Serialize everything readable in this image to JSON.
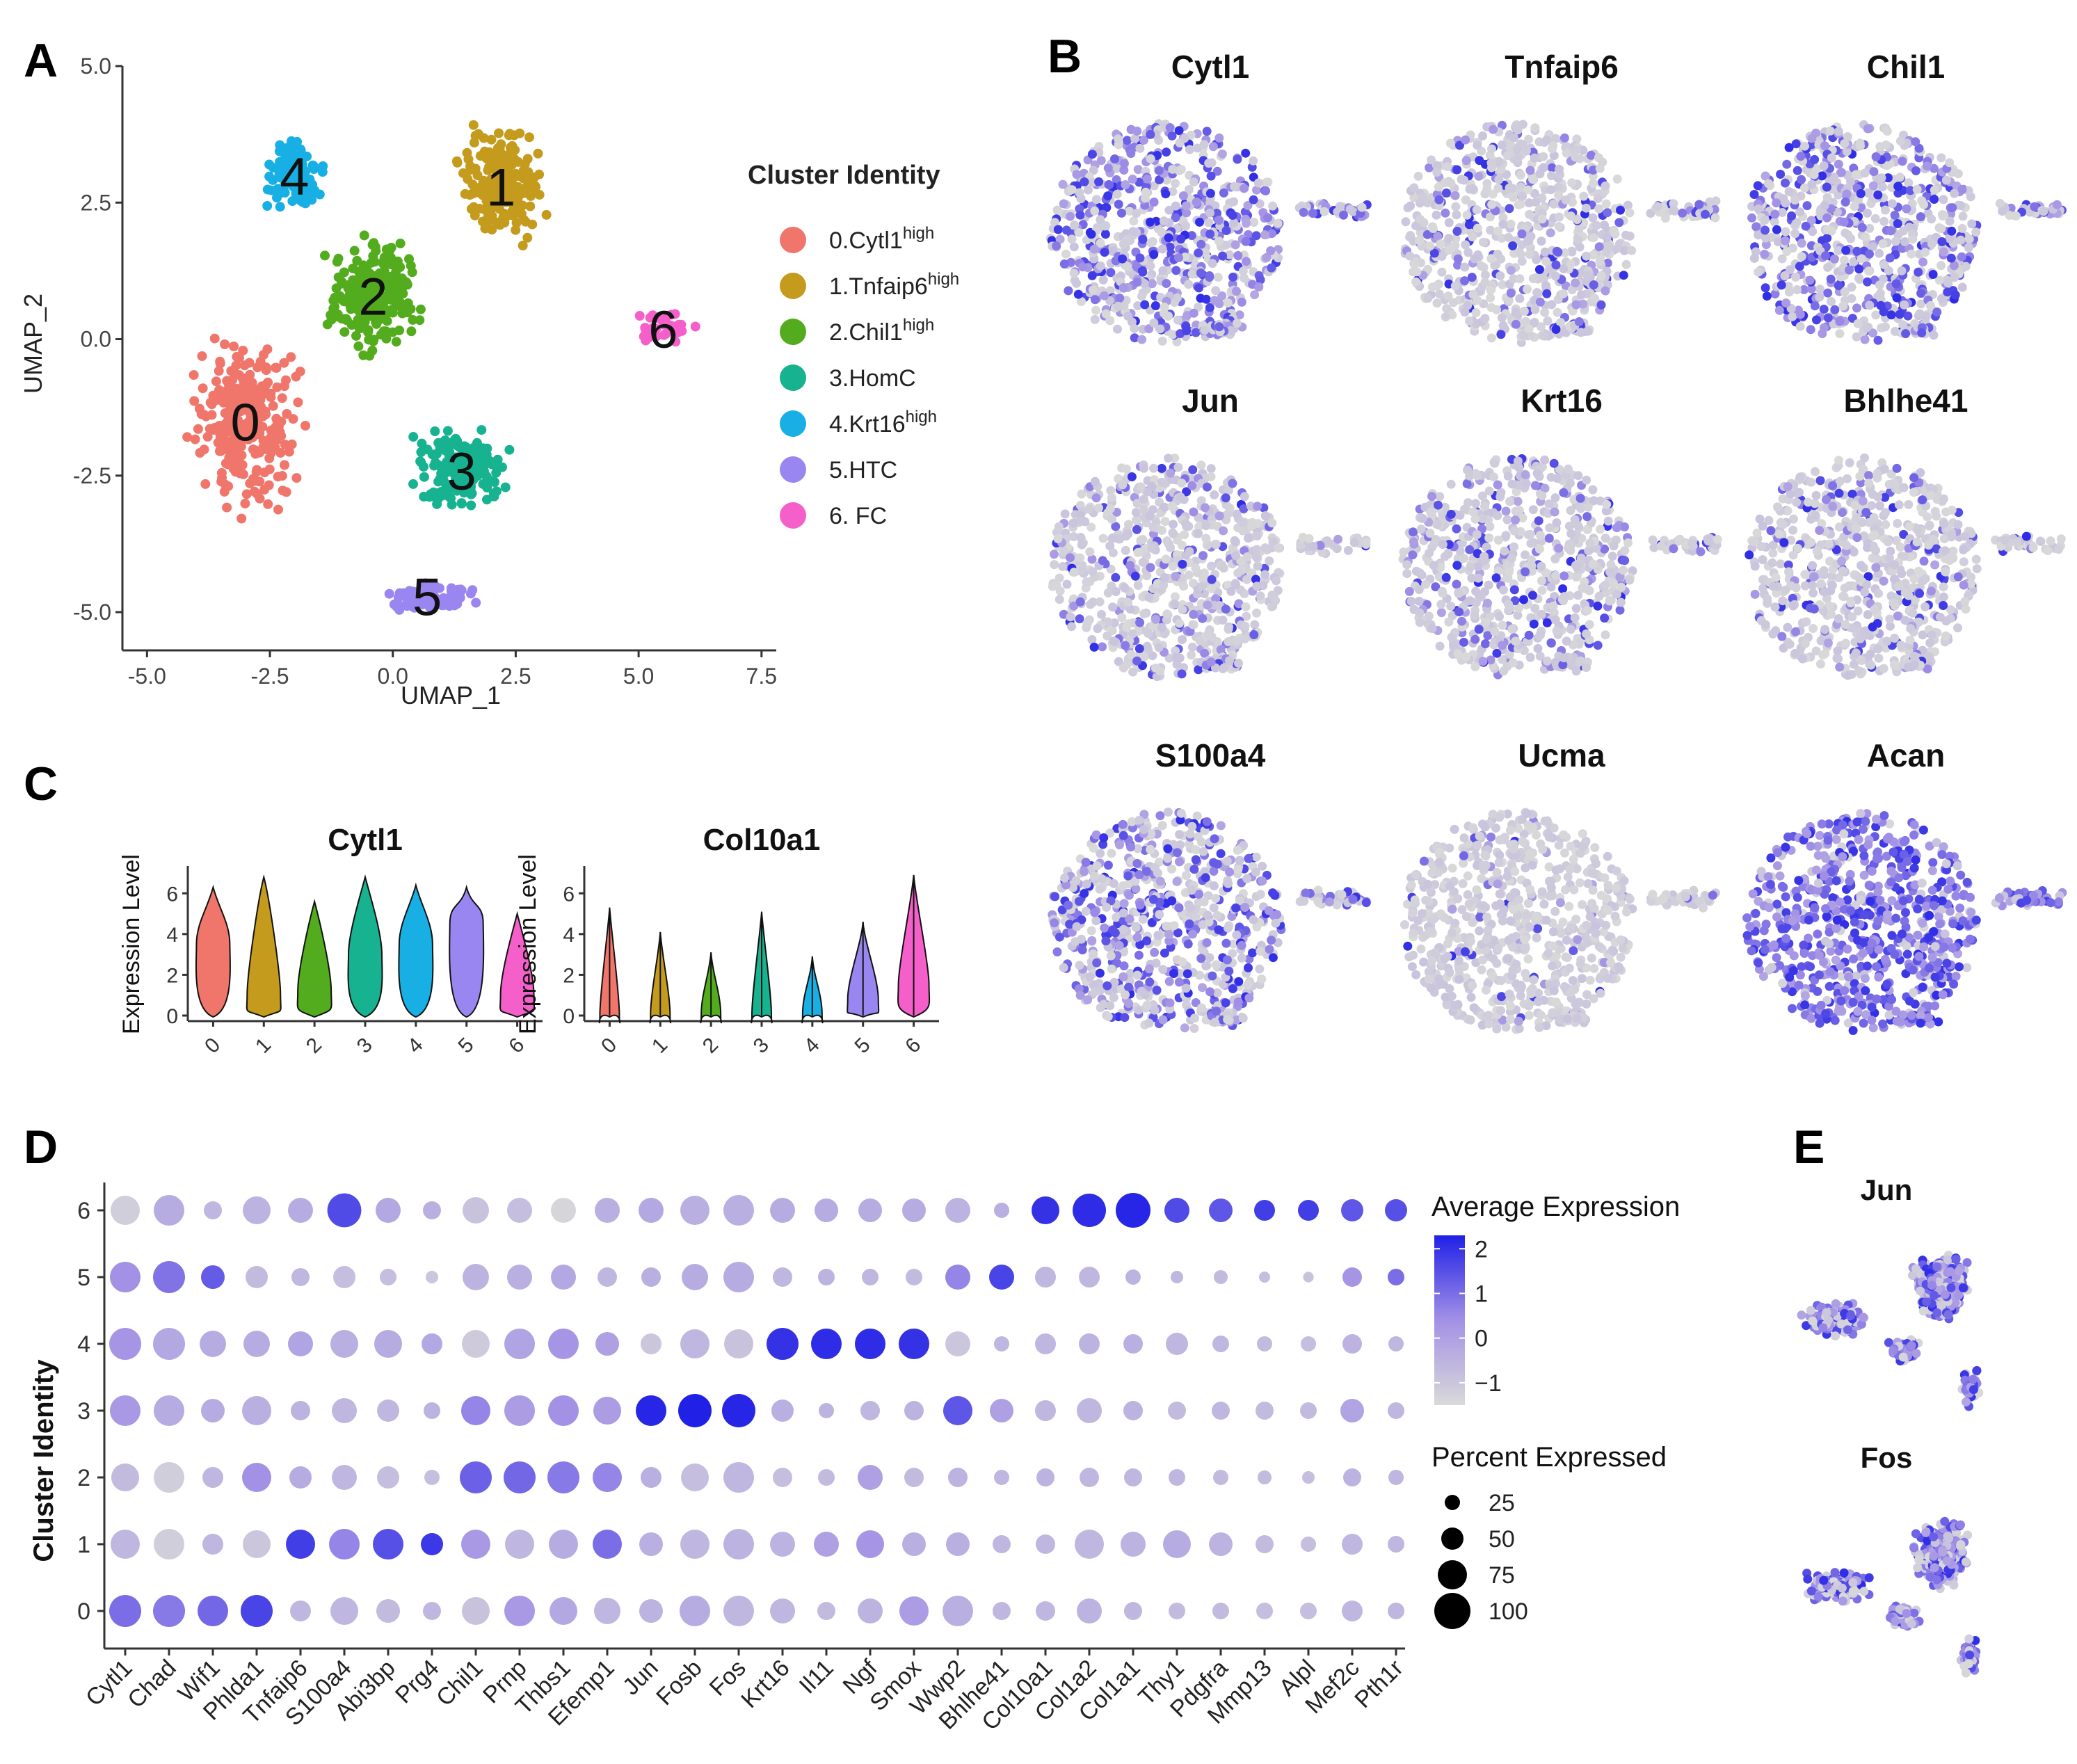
{
  "panel_labels": {
    "A": "A",
    "B": "B",
    "C": "C",
    "D": "D",
    "E": "E"
  },
  "colors": {
    "c0": "#f0756b",
    "c1": "#c49b1c",
    "c2": "#52ac1d",
    "c3": "#17b290",
    "c4": "#18b0e4",
    "c5": "#9a86f0",
    "c6": "#f55fc9",
    "low": "#d9d9d9",
    "high": "#2020e6",
    "axis": "#333333"
  },
  "icons": [
    "legend-dot-icon",
    "color-bar-icon",
    "size-dot-icon"
  ],
  "panelA": {
    "chart_data": {
      "type": "scatter",
      "xlabel": "UMAP_1",
      "ylabel": "UMAP_2",
      "xlim": [
        -5.5,
        7.8
      ],
      "ylim": [
        -5.7,
        5.0
      ],
      "x_ticks": [
        "-5.0",
        "-2.5",
        "0.0",
        "2.5",
        "5.0",
        "7.5"
      ],
      "y_ticks": [
        "5.0",
        "2.5",
        "0.0",
        "-2.5",
        "-5.0"
      ],
      "legend_title": "Cluster Identity",
      "legend_position": "right",
      "clusters": [
        {
          "id": "0",
          "label": "0.Cytl1",
          "sup": "high"
        },
        {
          "id": "1",
          "label": "1.Tnfaip6",
          "sup": "high"
        },
        {
          "id": "2",
          "label": "2.Chil1",
          "sup": "high"
        },
        {
          "id": "3",
          "label": "3.HomC",
          "sup": ""
        },
        {
          "id": "4",
          "label": "4.Krt16",
          "sup": "high"
        },
        {
          "id": "5",
          "label": "5.HTC",
          "sup": ""
        },
        {
          "id": "6",
          "label": "6. FC",
          "sup": ""
        }
      ],
      "cluster_centers": [
        [
          -3.0,
          -1.5
        ],
        [
          2.2,
          2.8
        ],
        [
          -0.4,
          0.8
        ],
        [
          1.4,
          -2.4
        ],
        [
          -2.0,
          3.0
        ],
        [
          0.7,
          -4.7
        ],
        [
          5.5,
          0.2
        ]
      ]
    }
  },
  "panelB": {
    "genes": [
      "Cytl1",
      "Tnfaip6",
      "Chil1",
      "Jun",
      "Krt16",
      "Bhlhe41",
      "S100a4",
      "Ucma",
      "Acan"
    ],
    "expression_level": [
      0.55,
      0.2,
      0.45,
      0.2,
      0.25,
      0.2,
      0.45,
      0.05,
      0.85
    ]
  },
  "panelC": {
    "chart_data": [
      {
        "type": "violin",
        "title": "Cytl1",
        "ylabel": "Expression Level",
        "categories": [
          "0",
          "1",
          "2",
          "3",
          "4",
          "5",
          "6"
        ],
        "y_ticks": [
          "0",
          "2",
          "4",
          "6"
        ],
        "ylim": [
          0,
          7
        ],
        "max": [
          6.3,
          6.8,
          5.6,
          6.8,
          6.4,
          6.3,
          5.0
        ],
        "median": [
          3.5,
          1.0,
          1.2,
          3.0,
          3.5,
          4.5,
          1.0
        ]
      },
      {
        "type": "violin",
        "title": "Col10a1",
        "ylabel": "Expression Level",
        "categories": [
          "0",
          "1",
          "2",
          "3",
          "4",
          "5",
          "6"
        ],
        "y_ticks": [
          "0",
          "2",
          "4",
          "6"
        ],
        "ylim": [
          0,
          7
        ],
        "max": [
          5.3,
          4.1,
          3.1,
          5.1,
          2.9,
          4.6,
          6.9
        ],
        "median": [
          0.05,
          0.05,
          0.05,
          0.05,
          0.05,
          0.8,
          1.5
        ]
      }
    ]
  },
  "panelD": {
    "chart_data": {
      "type": "dotplot",
      "ylabel": "Cluster Identity",
      "genes": [
        "Cytl1",
        "Chad",
        "Wif1",
        "Phlda1",
        "Tnfaip6",
        "S100a4",
        "Abi3bp",
        "Prg4",
        "Chil1",
        "Prnp",
        "Thbs1",
        "Efemp1",
        "Jun",
        "Fosb",
        "Fos",
        "Krt16",
        "Il11",
        "Ngf",
        "Smox",
        "Wwp2",
        "Bhlhe41",
        "Col10a1",
        "Col1a2",
        "Col1a1",
        "Thy1",
        "Pdgfra",
        "Mmp13",
        "Alpl",
        "Mef2c",
        "Pth1r"
      ],
      "clusters": [
        "6",
        "5",
        "4",
        "3",
        "2",
        "1",
        "0"
      ],
      "avg_expression": [
        [
          -1.2,
          -0.3,
          -0.6,
          -0.5,
          -0.3,
          1.6,
          -0.2,
          -0.4,
          -0.9,
          -0.8,
          -1.4,
          -0.4,
          -0.2,
          -0.4,
          -0.4,
          -0.3,
          -0.3,
          -0.3,
          -0.3,
          -0.5,
          -0.4,
          2.0,
          2.1,
          2.2,
          1.6,
          1.4,
          1.8,
          1.8,
          1.4,
          1.5
        ],
        [
          0.4,
          0.9,
          1.3,
          -0.7,
          -0.6,
          -0.8,
          -0.8,
          -1.0,
          -0.5,
          -0.4,
          -0.2,
          -0.6,
          -0.4,
          -0.3,
          -0.3,
          -0.6,
          -0.5,
          -0.6,
          -0.7,
          0.6,
          1.7,
          -0.6,
          -0.6,
          -0.5,
          -0.6,
          -0.7,
          -0.8,
          -0.9,
          0.3,
          1.0
        ],
        [
          0.3,
          -0.2,
          -0.3,
          -0.3,
          -0.1,
          -0.4,
          -0.3,
          -0.2,
          -1.1,
          -0.1,
          0.3,
          0.0,
          -1.0,
          -0.6,
          -0.9,
          2.0,
          2.1,
          2.1,
          2.0,
          -1.0,
          -0.6,
          -0.6,
          -0.5,
          -0.4,
          -0.6,
          -0.6,
          -0.7,
          -0.8,
          -0.5,
          -0.6
        ],
        [
          0.2,
          -0.3,
          -0.3,
          -0.4,
          -0.5,
          -0.6,
          -0.6,
          -0.5,
          0.6,
          0.1,
          0.4,
          0.1,
          2.2,
          2.3,
          2.2,
          -0.4,
          -0.5,
          -0.6,
          -0.5,
          1.4,
          0.0,
          -0.6,
          -0.6,
          -0.5,
          -0.7,
          -0.6,
          -0.7,
          -0.7,
          -0.1,
          -0.6
        ],
        [
          -0.7,
          -1.2,
          -0.6,
          0.4,
          -0.3,
          -0.6,
          -0.8,
          -0.8,
          1.2,
          1.1,
          0.8,
          0.6,
          -0.4,
          -0.8,
          -0.6,
          -0.8,
          -0.7,
          0.0,
          -0.7,
          -0.5,
          -0.6,
          -0.5,
          -0.6,
          -0.6,
          -0.6,
          -0.7,
          -0.7,
          -0.8,
          -0.5,
          -0.6
        ],
        [
          -0.6,
          -1.2,
          -0.6,
          -1.0,
          1.8,
          0.6,
          1.5,
          1.9,
          0.2,
          -0.6,
          -0.3,
          1.0,
          -0.4,
          -0.6,
          -0.5,
          -0.5,
          0.0,
          0.3,
          -0.4,
          -0.4,
          -0.6,
          -0.6,
          -0.6,
          -0.5,
          -0.3,
          -0.5,
          -0.7,
          -0.8,
          -0.6,
          -0.6
        ],
        [
          1.0,
          0.8,
          1.1,
          1.7,
          -0.6,
          -0.6,
          -0.7,
          -0.6,
          -0.9,
          0.2,
          -0.2,
          -0.6,
          -0.5,
          -0.3,
          -0.6,
          -0.6,
          -0.7,
          -0.5,
          0.1,
          -0.4,
          -0.6,
          -0.6,
          -0.5,
          -0.6,
          -0.7,
          -0.7,
          -0.8,
          -0.8,
          -0.6,
          -0.6
        ]
      ],
      "pct_expressed": [
        [
          75,
          80,
          35,
          70,
          60,
          92,
          60,
          35,
          65,
          60,
          60,
          60,
          60,
          75,
          80,
          60,
          55,
          55,
          55,
          60,
          25,
          70,
          90,
          95,
          60,
          55,
          45,
          45,
          50,
          50
        ],
        [
          80,
          85,
          55,
          50,
          35,
          50,
          30,
          15,
          65,
          60,
          60,
          40,
          40,
          65,
          80,
          40,
          30,
          30,
          30,
          60,
          60,
          45,
          45,
          25,
          15,
          20,
          10,
          8,
          40,
          30
        ],
        [
          85,
          85,
          65,
          65,
          60,
          70,
          70,
          45,
          70,
          80,
          80,
          55,
          45,
          75,
          75,
          85,
          80,
          80,
          80,
          60,
          25,
          45,
          45,
          40,
          50,
          30,
          25,
          25,
          40,
          25
        ],
        [
          80,
          80,
          55,
          75,
          40,
          60,
          50,
          30,
          75,
          80,
          80,
          70,
          80,
          90,
          90,
          50,
          25,
          40,
          40,
          75,
          55,
          45,
          60,
          40,
          35,
          35,
          35,
          30,
          55,
          30
        ],
        [
          70,
          80,
          45,
          75,
          50,
          60,
          50,
          25,
          85,
          85,
          85,
          75,
          45,
          70,
          80,
          40,
          30,
          60,
          40,
          40,
          25,
          35,
          40,
          35,
          30,
          25,
          20,
          15,
          35,
          25
        ],
        [
          75,
          80,
          45,
          70,
          75,
          80,
          80,
          50,
          75,
          75,
          75,
          75,
          55,
          75,
          80,
          60,
          60,
          70,
          55,
          55,
          35,
          40,
          75,
          60,
          70,
          55,
          35,
          25,
          45,
          30
        ],
        [
          85,
          85,
          80,
          85,
          45,
          70,
          55,
          35,
          70,
          80,
          70,
          65,
          55,
          80,
          80,
          60,
          35,
          60,
          75,
          80,
          35,
          40,
          60,
          35,
          30,
          30,
          30,
          30,
          45,
          30
        ]
      ],
      "color_legend_title": "Average Expression",
      "color_ticks": [
        "2",
        "1",
        "0",
        "−1"
      ],
      "color_range": [
        -1.5,
        2.3
      ],
      "size_legend_title": "Percent Expressed",
      "size_legend": [
        "25",
        "50",
        "75",
        "100"
      ]
    }
  },
  "panelE": {
    "genes": [
      "Jun",
      "Fos"
    ],
    "expression_level": [
      0.7,
      0.7
    ]
  }
}
